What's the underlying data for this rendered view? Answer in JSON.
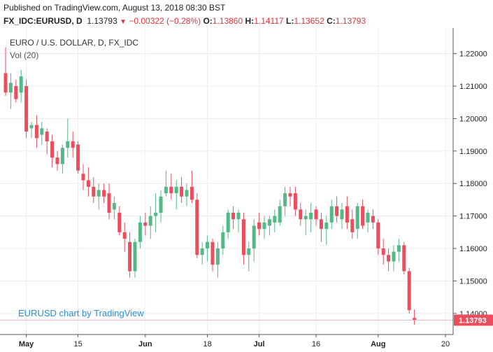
{
  "header": {
    "published": "Published on TradingView.com, August 13, 2018 08:30 BST",
    "symbol": "FX_IDC:EURUSD, D",
    "last": "1.13793",
    "down_icon": "triangle-down-icon",
    "change": "−0.00322 (−0.28%)",
    "o_label": "O:",
    "o_value": "1.13860",
    "h_label": "H:",
    "h_value": "1.14117",
    "l_label": "L:",
    "l_value": "1.13652",
    "c_label": "C:",
    "c_value": "1.13793"
  },
  "overlay": {
    "title": "EURO / U.S. DOLLAR, D, FX_IDC",
    "indicator": "Vol (20)",
    "watermark": "EURUSD chart by TradingView",
    "price_badge": "1.13793"
  },
  "colors": {
    "up": "#53b987",
    "down": "#eb4d5c",
    "grid": "#e9edf1",
    "axis_text": "#222222",
    "price_line": "#f0b8bc",
    "badge": "#eb4d5c",
    "watermark": "#2b8ed6"
  },
  "chart_data": {
    "type": "candlestick",
    "ylim": [
      1.1335,
      1.2279
    ],
    "y_ticks": [
      "1.22000",
      "1.21000",
      "1.20000",
      "1.19000",
      "1.18000",
      "1.17000",
      "1.16000",
      "1.15000",
      "1.14000"
    ],
    "y_tick_values": [
      1.22,
      1.21,
      1.2,
      1.19,
      1.18,
      1.17,
      1.16,
      1.15,
      1.14
    ],
    "x_ticks": [
      {
        "label": "May",
        "index": 4,
        "bold": true
      },
      {
        "label": "15",
        "index": 14,
        "bold": false
      },
      {
        "label": "Jun",
        "index": 27,
        "bold": true
      },
      {
        "label": "18",
        "index": 39,
        "bold": false
      },
      {
        "label": "Jul",
        "index": 49,
        "bold": true
      },
      {
        "label": "16",
        "index": 60,
        "bold": false
      },
      {
        "label": "Aug",
        "index": 72,
        "bold": true
      },
      {
        "label": "20",
        "index": 85,
        "bold": false
      }
    ],
    "x_count": 89,
    "last_price": 1.13793,
    "candles": [
      [
        1.214,
        1.222,
        1.207,
        1.208
      ],
      [
        1.208,
        1.214,
        1.203,
        1.211
      ],
      [
        1.21,
        1.212,
        1.205,
        1.206
      ],
      [
        1.208,
        1.215,
        1.205,
        1.213
      ],
      [
        1.21,
        1.212,
        1.194,
        1.196
      ],
      [
        1.197,
        1.199,
        1.194,
        1.198
      ],
      [
        1.198,
        1.201,
        1.191,
        1.194
      ],
      [
        1.195,
        1.199,
        1.192,
        1.197
      ],
      [
        1.196,
        1.197,
        1.189,
        1.193
      ],
      [
        1.193,
        1.195,
        1.185,
        1.188
      ],
      [
        1.188,
        1.19,
        1.184,
        1.186
      ],
      [
        1.186,
        1.192,
        1.183,
        1.191
      ],
      [
        1.191,
        1.2,
        1.188,
        1.193
      ],
      [
        1.193,
        1.196,
        1.188,
        1.191
      ],
      [
        1.192,
        1.193,
        1.183,
        1.184
      ],
      [
        1.183,
        1.186,
        1.178,
        1.181
      ],
      [
        1.181,
        1.185,
        1.176,
        1.179
      ],
      [
        1.179,
        1.182,
        1.174,
        1.176
      ],
      [
        1.176,
        1.18,
        1.172,
        1.178
      ],
      [
        1.178,
        1.18,
        1.174,
        1.176
      ],
      [
        1.177,
        1.18,
        1.169,
        1.171
      ],
      [
        1.172,
        1.176,
        1.169,
        1.174
      ],
      [
        1.171,
        1.173,
        1.164,
        1.165
      ],
      [
        1.165,
        1.168,
        1.159,
        1.163
      ],
      [
        1.162,
        1.165,
        1.151,
        1.153
      ],
      [
        1.153,
        1.163,
        1.151,
        1.162
      ],
      [
        1.162,
        1.17,
        1.16,
        1.168
      ],
      [
        1.168,
        1.171,
        1.164,
        1.167
      ],
      [
        1.167,
        1.173,
        1.163,
        1.17
      ],
      [
        1.17,
        1.177,
        1.165,
        1.171
      ],
      [
        1.171,
        1.178,
        1.168,
        1.176
      ],
      [
        1.177,
        1.184,
        1.176,
        1.179
      ],
      [
        1.179,
        1.183,
        1.175,
        1.177
      ],
      [
        1.177,
        1.181,
        1.172,
        1.179
      ],
      [
        1.179,
        1.182,
        1.174,
        1.176
      ],
      [
        1.176,
        1.18,
        1.173,
        1.178
      ],
      [
        1.179,
        1.184,
        1.174,
        1.175
      ],
      [
        1.175,
        1.177,
        1.157,
        1.158
      ],
      [
        1.158,
        1.162,
        1.155,
        1.16
      ],
      [
        1.16,
        1.164,
        1.156,
        1.162
      ],
      [
        1.162,
        1.163,
        1.153,
        1.155
      ],
      [
        1.155,
        1.162,
        1.151,
        1.16
      ],
      [
        1.16,
        1.167,
        1.158,
        1.165
      ],
      [
        1.165,
        1.172,
        1.163,
        1.171
      ],
      [
        1.171,
        1.173,
        1.166,
        1.169
      ],
      [
        1.169,
        1.172,
        1.165,
        1.171
      ],
      [
        1.169,
        1.171,
        1.155,
        1.158
      ],
      [
        1.158,
        1.162,
        1.153,
        1.16
      ],
      [
        1.16,
        1.169,
        1.156,
        1.167
      ],
      [
        1.168,
        1.171,
        1.164,
        1.166
      ],
      [
        1.166,
        1.17,
        1.163,
        1.168
      ],
      [
        1.167,
        1.17,
        1.164,
        1.169
      ],
      [
        1.168,
        1.172,
        1.165,
        1.17
      ],
      [
        1.168,
        1.175,
        1.167,
        1.173
      ],
      [
        1.173,
        1.179,
        1.17,
        1.177
      ],
      [
        1.177,
        1.179,
        1.173,
        1.176
      ],
      [
        1.177,
        1.179,
        1.17,
        1.172
      ],
      [
        1.172,
        1.174,
        1.167,
        1.169
      ],
      [
        1.169,
        1.172,
        1.164,
        1.17
      ],
      [
        1.169,
        1.174,
        1.165,
        1.171
      ],
      [
        1.172,
        1.173,
        1.167,
        1.169
      ],
      [
        1.169,
        1.171,
        1.162,
        1.166
      ],
      [
        1.166,
        1.17,
        1.161,
        1.168
      ],
      [
        1.168,
        1.175,
        1.166,
        1.173
      ],
      [
        1.173,
        1.176,
        1.168,
        1.17
      ],
      [
        1.169,
        1.174,
        1.166,
        1.172
      ],
      [
        1.173,
        1.176,
        1.166,
        1.168
      ],
      [
        1.169,
        1.172,
        1.163,
        1.165
      ],
      [
        1.166,
        1.174,
        1.163,
        1.173
      ],
      [
        1.173,
        1.175,
        1.166,
        1.167
      ],
      [
        1.168,
        1.172,
        1.165,
        1.171
      ],
      [
        1.17,
        1.172,
        1.166,
        1.168
      ],
      [
        1.168,
        1.169,
        1.158,
        1.16
      ],
      [
        1.16,
        1.163,
        1.155,
        1.158
      ],
      [
        1.158,
        1.16,
        1.153,
        1.156
      ],
      [
        1.156,
        1.161,
        1.153,
        1.159
      ],
      [
        1.159,
        1.163,
        1.156,
        1.161
      ],
      [
        1.161,
        1.162,
        1.152,
        1.153
      ],
      [
        1.153,
        1.154,
        1.14,
        1.141
      ],
      [
        1.1386,
        1.1412,
        1.1365,
        1.1379
      ]
    ]
  }
}
